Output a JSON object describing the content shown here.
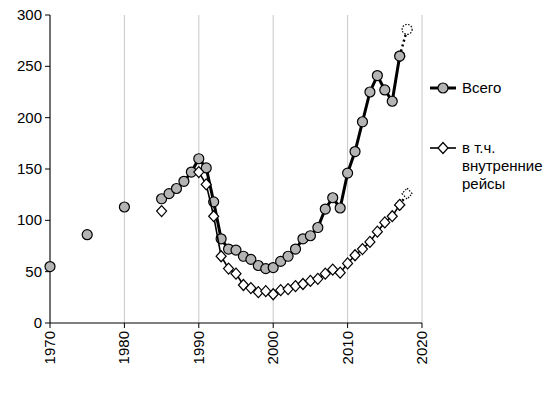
{
  "chart_data": {
    "type": "line",
    "x": [
      1970,
      1971,
      1972,
      1973,
      1974,
      1975,
      1976,
      1977,
      1978,
      1979,
      1980,
      1981,
      1982,
      1983,
      1984,
      1985,
      1986,
      1987,
      1988,
      1989,
      1990,
      1991,
      1992,
      1993,
      1994,
      1995,
      1996,
      1997,
      1998,
      1999,
      2000,
      2001,
      2002,
      2003,
      2004,
      2005,
      2006,
      2007,
      2008,
      2009,
      2010,
      2011,
      2012,
      2013,
      2014,
      2015,
      2016,
      2017,
      2018
    ],
    "xlim": [
      1970,
      2020
    ],
    "xticks": [
      1970,
      1980,
      1990,
      2000,
      2010,
      2020
    ],
    "ylim": [
      0,
      300
    ],
    "yticks": [
      0,
      50,
      100,
      150,
      200,
      250,
      300
    ],
    "grid": "x",
    "legend": "right",
    "series": [
      {
        "name": "Всего",
        "color": "#000000",
        "marker": "circle",
        "line_style": "solid",
        "values": [
          55,
          null,
          null,
          null,
          null,
          86,
          null,
          null,
          null,
          null,
          113,
          null,
          null,
          null,
          null,
          121,
          126,
          131,
          138,
          147,
          160,
          151,
          118,
          82,
          72,
          71,
          65,
          62,
          56,
          53,
          54,
          60,
          65,
          72,
          82,
          85,
          93,
          111,
          122,
          112,
          146,
          167,
          196,
          225,
          241,
          227,
          216,
          260,
          null
        ]
      },
      {
        "name": "в т.ч. внутренние рейсы",
        "color": "#000000",
        "marker": "diamond",
        "line_style": "solid",
        "values": [
          null,
          null,
          null,
          null,
          null,
          null,
          null,
          null,
          null,
          null,
          null,
          null,
          null,
          null,
          null,
          109,
          null,
          null,
          null,
          null,
          147,
          135,
          104,
          65,
          53,
          48,
          37,
          34,
          30,
          31,
          28,
          32,
          33,
          36,
          38,
          41,
          43,
          48,
          52,
          49,
          58,
          66,
          72,
          79,
          89,
          98,
          104,
          115,
          null
        ]
      },
      {
        "color": "#000000",
        "marker": "open_circle",
        "line_style": "dotted",
        "values": [
          null,
          null,
          null,
          null,
          null,
          null,
          null,
          null,
          null,
          null,
          null,
          null,
          null,
          null,
          null,
          null,
          null,
          null,
          null,
          null,
          null,
          null,
          null,
          null,
          null,
          null,
          null,
          null,
          null,
          null,
          null,
          null,
          null,
          null,
          null,
          null,
          null,
          null,
          null,
          null,
          null,
          null,
          null,
          null,
          null,
          null,
          null,
          260,
          286
        ]
      },
      {
        "color": "#000000",
        "marker": "open_diamond",
        "line_style": "dotted",
        "values": [
          null,
          null,
          null,
          null,
          null,
          null,
          null,
          null,
          null,
          null,
          null,
          null,
          null,
          null,
          null,
          null,
          null,
          null,
          null,
          null,
          null,
          null,
          null,
          null,
          null,
          null,
          null,
          null,
          null,
          null,
          null,
          null,
          null,
          null,
          null,
          null,
          null,
          null,
          null,
          null,
          null,
          null,
          null,
          null,
          null,
          null,
          null,
          115,
          126
        ]
      }
    ]
  }
}
